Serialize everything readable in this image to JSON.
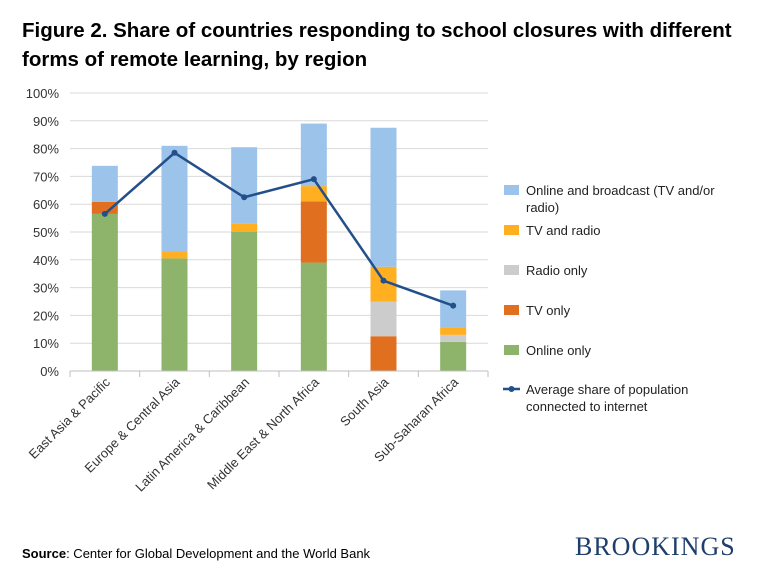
{
  "title": "Figure 2. Share of countries responding to school closures with different forms of remote learning, by region",
  "source_label": "Source",
  "source_text": ": Center for Global Development and the World Bank",
  "brand": "BROOKINGS",
  "colors": {
    "online_only": "#8db46a",
    "tv_only": "#e07020",
    "radio_only": "#cccccc",
    "tv_and_radio": "#ffaf20",
    "online_and_broadcast": "#9cc3ea",
    "line": "#234f8a",
    "grid": "#d9d9d9",
    "axis": "#bfbfbf"
  },
  "chart_data": {
    "type": "bar",
    "stacked": true,
    "title": "Figure 2. Share of countries responding to school closures with different forms of remote learning, by region",
    "categories": [
      "East Asia & Pacific",
      "Europe & Central Asia",
      "Latin America & Caribbean",
      "Middle East & North Africa",
      "South Asia",
      "Sub-Saharan Africa"
    ],
    "ylim": [
      0,
      100
    ],
    "yticks": [
      0,
      10,
      20,
      30,
      40,
      50,
      60,
      70,
      80,
      90,
      100
    ],
    "ytick_suffix": "%",
    "grid": true,
    "legend_position": "right",
    "series": [
      {
        "key": "online_only",
        "name": "Online only",
        "values": [
          56.5,
          40.5,
          50,
          39,
          0,
          10.5
        ]
      },
      {
        "key": "tv_only",
        "name": "TV only",
        "values": [
          4.3,
          0,
          0,
          22,
          12.5,
          0
        ]
      },
      {
        "key": "radio_only",
        "name": "Radio only",
        "values": [
          0,
          0,
          0,
          0,
          12.5,
          2.5
        ]
      },
      {
        "key": "tv_and_radio",
        "name": "TV and radio",
        "values": [
          0,
          2.3,
          3,
          5.5,
          12.5,
          2.5
        ]
      },
      {
        "key": "online_and_broadcast",
        "name": "Online and broadcast (TV and/or radio)",
        "values": [
          13,
          38.2,
          27.5,
          22.5,
          50,
          13.5
        ]
      }
    ],
    "line_series": {
      "key": "line",
      "name": "Average share of population connected to internet",
      "values": [
        56.5,
        78.5,
        62.5,
        69,
        32.5,
        23.5
      ]
    },
    "legend": [
      {
        "key": "online_and_broadcast",
        "lines": [
          "Online and broadcast (TV and/or",
          "radio)"
        ],
        "kind": "box"
      },
      {
        "key": "tv_and_radio",
        "lines": [
          "TV and radio"
        ],
        "kind": "box"
      },
      {
        "key": "radio_only",
        "lines": [
          "Radio only"
        ],
        "kind": "box"
      },
      {
        "key": "tv_only",
        "lines": [
          "TV only"
        ],
        "kind": "box"
      },
      {
        "key": "online_only",
        "lines": [
          "Online only"
        ],
        "kind": "box"
      },
      {
        "key": "line",
        "lines": [
          "Average share of population",
          "connected to internet"
        ],
        "kind": "line"
      }
    ]
  }
}
